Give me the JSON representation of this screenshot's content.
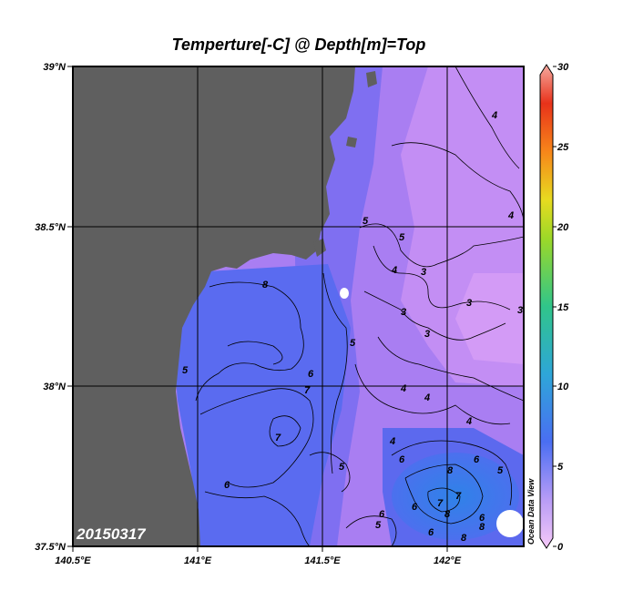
{
  "chart_data": {
    "type": "heatmap",
    "title": "Temperture[-C] @ Depth[m]=Top",
    "date_label": "20150317",
    "watermark": "Ocean Data View",
    "x_ticks": [
      "140.5°E",
      "141°E",
      "141.5°E",
      "142°E"
    ],
    "y_ticks": [
      "39°N",
      "38.5°N",
      "38°N",
      "37.5°N"
    ],
    "lon_range": [
      140.5,
      142.3
    ],
    "lat_range": [
      37.5,
      39.0
    ],
    "colorbar": {
      "range": [
        0,
        30
      ],
      "ticks": [
        "30",
        "25",
        "20",
        "15",
        "10",
        "5",
        "0"
      ]
    },
    "contour_labels": [
      "4",
      "4",
      "5",
      "5",
      "4",
      "3",
      "3",
      "3",
      "4",
      "3",
      "3",
      "4",
      "4",
      "4",
      "8",
      "6",
      "6",
      "6",
      "6",
      "7",
      "7",
      "6",
      "5",
      "6",
      "6",
      "7",
      "8",
      "8",
      "8",
      "8",
      "6",
      "5",
      "5",
      "7",
      "5",
      "5"
    ],
    "colors": {
      "land": "#5f5f5f",
      "cold_water": "#cc88f2",
      "mid_water": "#9e78f2",
      "warm_water": "#5e6af0",
      "warmest_water": "#3a78ea"
    }
  }
}
